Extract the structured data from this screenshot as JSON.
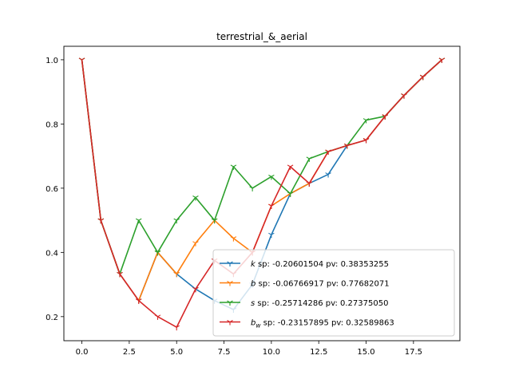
{
  "chart_data": {
    "type": "line",
    "title": "terrestrial_&_aerial",
    "xlabel": "",
    "ylabel": "",
    "xlim": [
      -0.95,
      19.95
    ],
    "ylim": [
      0.125,
      1.042
    ],
    "xticks": [
      0.0,
      2.5,
      5.0,
      7.5,
      10.0,
      12.5,
      15.0,
      17.5
    ],
    "xtick_labels": [
      "0.0",
      "2.5",
      "5.0",
      "7.5",
      "10.0",
      "12.5",
      "15.0",
      "17.5"
    ],
    "yticks": [
      0.2,
      0.4,
      0.6,
      0.8,
      1.0
    ],
    "ytick_labels": [
      "0.2",
      "0.4",
      "0.6",
      "0.8",
      "1.0"
    ],
    "grid": false,
    "legend_position": "lower-right",
    "x": [
      0,
      1,
      2,
      3,
      4,
      5,
      6,
      7,
      8,
      9,
      10,
      11,
      12,
      13,
      14,
      15,
      16,
      17,
      18,
      19
    ],
    "series": [
      {
        "legend_var": "k",
        "legend_sub": "",
        "legend_rest": " sp: -0.20601504 pv: 0.38353255",
        "color": "#1f77b4",
        "values": [
          1.0,
          0.5,
          0.333,
          0.25,
          0.4,
          0.333,
          0.286,
          0.25,
          0.222,
          0.3,
          0.455,
          0.583,
          0.615,
          0.643,
          0.733,
          0.75,
          0.824,
          0.889,
          0.947,
          1.0
        ]
      },
      {
        "legend_var": "b",
        "legend_sub": "",
        "legend_rest": " sp: -0.06766917 pv: 0.77682071",
        "color": "#ff7f0e",
        "values": [
          1.0,
          0.5,
          0.333,
          0.25,
          0.4,
          0.333,
          0.429,
          0.5,
          0.444,
          0.4,
          0.545,
          0.583,
          0.615,
          0.714,
          0.733,
          0.75,
          0.824,
          0.889,
          0.947,
          1.0
        ]
      },
      {
        "legend_var": "s",
        "legend_sub": "",
        "legend_rest": " sp: -0.25714286 pv: 0.27375050",
        "color": "#2ca02c",
        "values": [
          1.0,
          0.5,
          0.333,
          0.5,
          0.4,
          0.5,
          0.571,
          0.5,
          0.667,
          0.6,
          0.636,
          0.583,
          0.692,
          0.714,
          0.733,
          0.812,
          0.824,
          0.889,
          0.947,
          1.0
        ]
      },
      {
        "legend_var": "b",
        "legend_sub": "w",
        "legend_rest": " sp: -0.23157895 pv: 0.32589863",
        "color": "#d62728",
        "values": [
          1.0,
          0.5,
          0.333,
          0.25,
          0.2,
          0.167,
          0.286,
          0.375,
          0.333,
          0.4,
          0.545,
          0.667,
          0.615,
          0.714,
          0.733,
          0.75,
          0.824,
          0.889,
          0.947,
          1.0
        ]
      }
    ]
  }
}
